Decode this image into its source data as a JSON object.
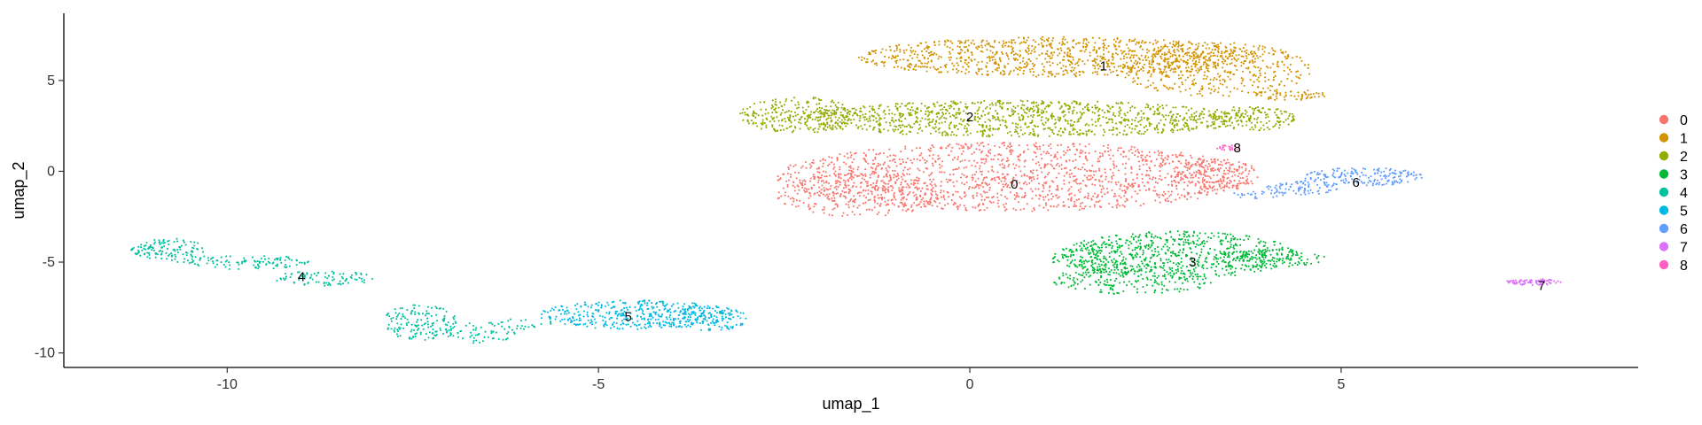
{
  "chart_data": {
    "type": "scatter",
    "xlabel": "umap_1",
    "ylabel": "umap_2",
    "xlim": [
      -12.2,
      9.0
    ],
    "ylim": [
      -10.8,
      8.7
    ],
    "x_ticks": [
      -10,
      -5,
      0,
      5
    ],
    "y_ticks": [
      -10,
      -5,
      0,
      5
    ],
    "x_tick_labels": [
      "-10",
      "-5",
      "0",
      "5"
    ],
    "y_tick_labels": [
      "-10",
      "-5",
      "0",
      "5"
    ],
    "grid": false,
    "legend": "right",
    "series": [
      {
        "name": "0",
        "color": "#F8766D",
        "label_pos": [
          0.6,
          -0.7
        ],
        "blobs": [
          {
            "cx": 0.6,
            "cy": -0.3,
            "rx": 3.2,
            "ry": 1.9,
            "n": 1500
          },
          {
            "cx": -1.5,
            "cy": -1.3,
            "rx": 1.1,
            "ry": 1.2,
            "n": 260
          },
          {
            "cx": 3.3,
            "cy": -0.2,
            "rx": 0.6,
            "ry": 0.9,
            "n": 150
          }
        ]
      },
      {
        "name": "1",
        "color": "#D39200",
        "label_pos": [
          1.8,
          5.8
        ],
        "blobs": [
          {
            "cx": 1.2,
            "cy": 6.3,
            "rx": 2.7,
            "ry": 1.1,
            "n": 1000
          },
          {
            "cx": 3.3,
            "cy": 5.6,
            "rx": 1.3,
            "ry": 1.5,
            "n": 400
          },
          {
            "cx": 4.3,
            "cy": 4.2,
            "rx": 0.5,
            "ry": 0.3,
            "n": 60
          }
        ]
      },
      {
        "name": "2",
        "color": "#93AA00",
        "label_pos": [
          0.0,
          3.0
        ],
        "blobs": [
          {
            "cx": 0.7,
            "cy": 2.9,
            "rx": 3.1,
            "ry": 1.0,
            "n": 1100
          },
          {
            "cx": -2.3,
            "cy": 3.1,
            "rx": 0.8,
            "ry": 1.0,
            "n": 250
          },
          {
            "cx": 3.8,
            "cy": 2.9,
            "rx": 0.6,
            "ry": 0.7,
            "n": 130
          }
        ]
      },
      {
        "name": "3",
        "color": "#00BA38",
        "label_pos": [
          3.0,
          -5.0
        ],
        "blobs": [
          {
            "cx": 2.8,
            "cy": -4.6,
            "rx": 1.6,
            "ry": 1.3,
            "n": 600
          },
          {
            "cx": 2.2,
            "cy": -6.0,
            "rx": 1.1,
            "ry": 0.8,
            "n": 200
          },
          {
            "cx": 4.0,
            "cy": -4.8,
            "rx": 0.8,
            "ry": 0.5,
            "n": 140
          },
          {
            "cx": 1.9,
            "cy": -4.8,
            "rx": 0.8,
            "ry": 0.9,
            "n": 120
          }
        ]
      },
      {
        "name": "4",
        "color": "#00C19F",
        "label_pos": [
          -9.0,
          -5.8
        ],
        "blobs": [
          {
            "cx": -10.8,
            "cy": -4.3,
            "rx": 0.5,
            "ry": 0.6,
            "n": 120
          },
          {
            "cx": -9.8,
            "cy": -5.0,
            "rx": 0.9,
            "ry": 0.4,
            "n": 110
          },
          {
            "cx": -8.7,
            "cy": -5.9,
            "rx": 0.7,
            "ry": 0.4,
            "n": 90
          },
          {
            "cx": -7.4,
            "cy": -8.3,
            "rx": 0.5,
            "ry": 1.0,
            "n": 150
          },
          {
            "cx": -6.6,
            "cy": -8.9,
            "rx": 0.5,
            "ry": 0.6,
            "n": 60
          },
          {
            "cx": -6.0,
            "cy": -8.4,
            "rx": 0.4,
            "ry": 0.3,
            "n": 25
          }
        ]
      },
      {
        "name": "5",
        "color": "#00B9E3",
        "label_pos": [
          -4.6,
          -8.0
        ],
        "blobs": [
          {
            "cx": -4.5,
            "cy": -7.9,
            "rx": 1.3,
            "ry": 0.8,
            "n": 420
          },
          {
            "cx": -3.5,
            "cy": -8.1,
            "rx": 0.5,
            "ry": 0.7,
            "n": 100
          }
        ]
      },
      {
        "name": "6",
        "color": "#619CFF",
        "label_pos": [
          5.2,
          -0.6
        ],
        "blobs": [
          {
            "cx": 5.3,
            "cy": -0.3,
            "rx": 0.8,
            "ry": 0.5,
            "n": 170
          },
          {
            "cx": 4.5,
            "cy": -0.9,
            "rx": 0.5,
            "ry": 0.4,
            "n": 80
          },
          {
            "cx": 3.9,
            "cy": -1.3,
            "rx": 0.4,
            "ry": 0.2,
            "n": 25
          }
        ]
      },
      {
        "name": "7",
        "color": "#DB72FB",
        "label_pos": [
          7.7,
          -6.3
        ],
        "blobs": [
          {
            "cx": 7.6,
            "cy": -6.1,
            "rx": 0.4,
            "ry": 0.18,
            "n": 75
          }
        ]
      },
      {
        "name": "8",
        "color": "#FF61C3",
        "label_pos": [
          3.6,
          1.3
        ],
        "blobs": [
          {
            "cx": 3.5,
            "cy": 1.3,
            "rx": 0.18,
            "ry": 0.18,
            "n": 22
          }
        ]
      }
    ]
  }
}
